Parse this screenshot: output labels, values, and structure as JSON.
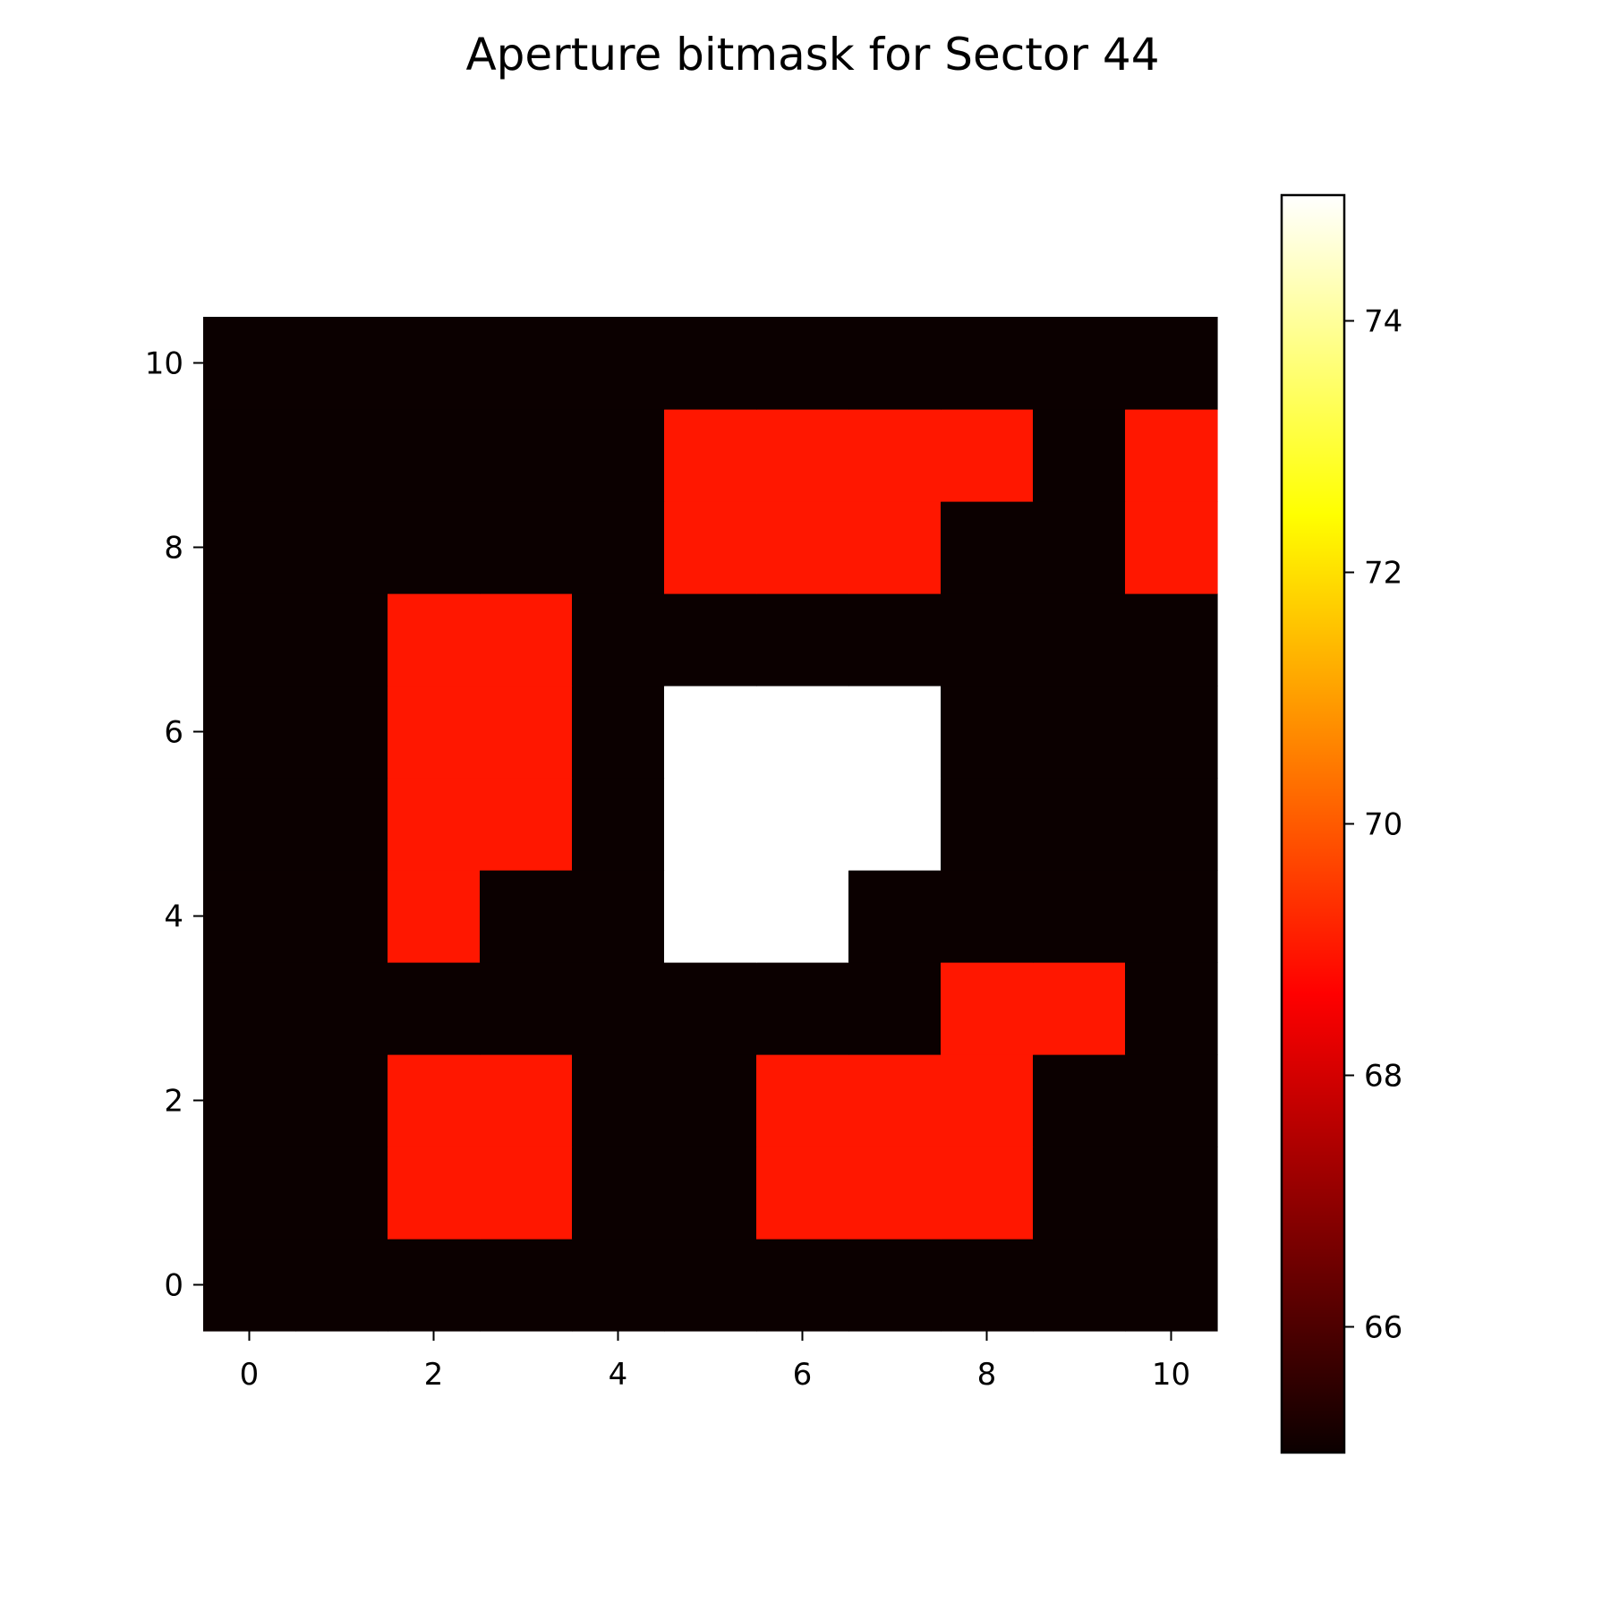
{
  "chart_data": {
    "type": "heatmap",
    "title": "Aperture bitmask for Sector 44",
    "xlabel": "",
    "ylabel": "",
    "colormap": "hot",
    "origin": "lower",
    "vmin": 65,
    "vmax": 75,
    "xlim": [
      -0.5,
      10.5
    ],
    "ylim": [
      -0.5,
      10.5
    ],
    "x_ticks": [
      0,
      2,
      4,
      6,
      8,
      10
    ],
    "y_ticks": [
      0,
      2,
      4,
      6,
      8,
      10
    ],
    "colorbar_ticks": [
      66,
      68,
      70,
      72,
      74
    ],
    "grid": false,
    "rows_bottom_to_top": [
      [
        65,
        65,
        65,
        65,
        65,
        65,
        65,
        65,
        65,
        65,
        65
      ],
      [
        65,
        65,
        69,
        69,
        65,
        65,
        69,
        69,
        69,
        65,
        65
      ],
      [
        65,
        65,
        69,
        69,
        65,
        65,
        69,
        69,
        69,
        65,
        65
      ],
      [
        65,
        65,
        65,
        65,
        65,
        65,
        65,
        65,
        69,
        69,
        65
      ],
      [
        65,
        65,
        69,
        65,
        65,
        75,
        75,
        65,
        65,
        65,
        65
      ],
      [
        65,
        65,
        69,
        69,
        65,
        75,
        75,
        75,
        65,
        65,
        65
      ],
      [
        65,
        65,
        69,
        69,
        65,
        75,
        75,
        75,
        65,
        65,
        65
      ],
      [
        65,
        65,
        69,
        69,
        65,
        65,
        65,
        65,
        65,
        65,
        65
      ],
      [
        65,
        65,
        65,
        65,
        65,
        69,
        69,
        69,
        65,
        65,
        69
      ],
      [
        65,
        65,
        65,
        65,
        65,
        69,
        69,
        69,
        69,
        65,
        69
      ],
      [
        65,
        65,
        65,
        65,
        65,
        65,
        65,
        65,
        65,
        65,
        65
      ]
    ]
  },
  "colors": {
    "low": "#0b0000",
    "mid": "#ff1a00",
    "high": "#ffffff"
  }
}
